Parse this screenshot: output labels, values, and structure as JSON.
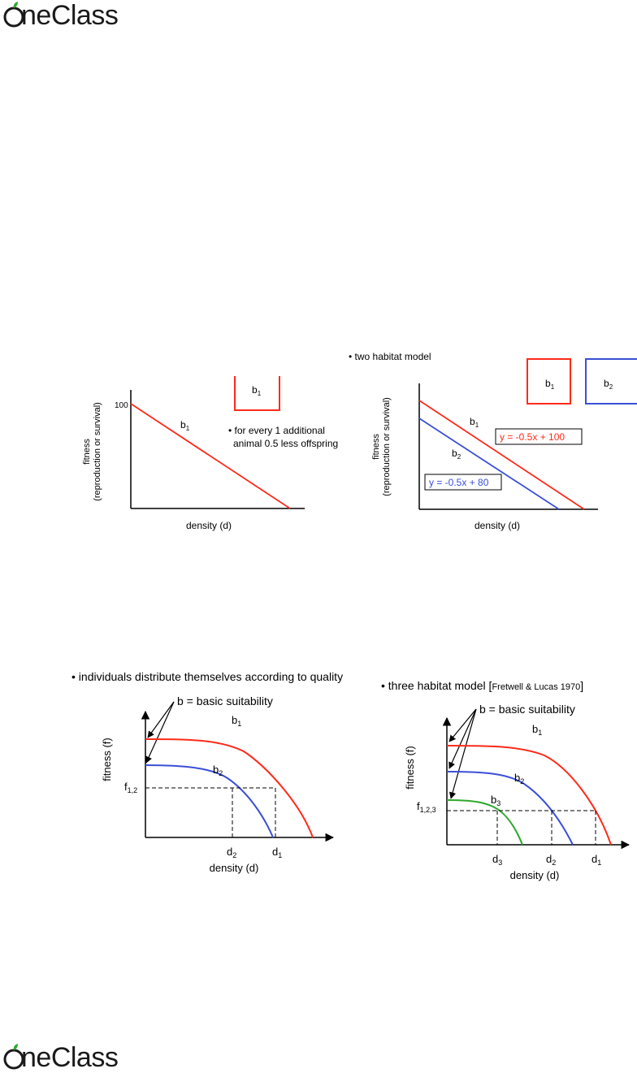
{
  "brand": {
    "name": "OneClass",
    "logo_text": "neClass"
  },
  "colors": {
    "red": "#ff2a1a",
    "blue": "#3a4fd6",
    "green": "#2ea82e",
    "axis": "#000000"
  },
  "fig1": {
    "ylabel_1": "fitness",
    "ylabel_2": "(reproduction or survival)",
    "xlabel": "density (d)",
    "y_tick": "100",
    "line_label": "b",
    "line_sub": "1",
    "box_label": "b",
    "box_sub": "1",
    "note_1": "• for every 1 additional",
    "note_2": "animal 0.5 less offspring"
  },
  "fig2": {
    "title": "• two habitat model",
    "ylabel_1": "fitness",
    "ylabel_2": "(reproduction or survival)",
    "xlabel": "density (d)",
    "b1": "b",
    "b1_sub": "1",
    "b2": "b",
    "b2_sub": "2",
    "box1": "b",
    "box1_sub": "1",
    "box2": "b",
    "box2_sub": "2",
    "eq1": "y = -0.5x + 100",
    "eq2": "y = -0.5x + 80"
  },
  "fig3": {
    "title": "• individuals distribute themselves according to quality",
    "annot": "b = basic suitability",
    "ylabel": "fitness (f)",
    "xlabel": "density (d)",
    "f": "f",
    "f_sub": "1,2",
    "b1": "b",
    "b1_sub": "1",
    "b2": "b",
    "b2_sub": "2",
    "d1": "d",
    "d1_sub": "1",
    "d2": "d",
    "d2_sub": "2"
  },
  "fig4": {
    "title": "• three habitat model [",
    "ref": "Fretwell & Lucas 1970",
    "ref_close": "]",
    "annot": "b = basic suitability",
    "ylabel": "fitness (f)",
    "xlabel": "density (d)",
    "f": "f",
    "f_sub": "1,2,3",
    "b1": "b",
    "b1_sub": "1",
    "b2": "b",
    "b2_sub": "2",
    "b3": "b",
    "b3_sub": "3",
    "d1": "d",
    "d1_sub": "1",
    "d2": "d",
    "d2_sub": "2",
    "d3": "d",
    "d3_sub": "3"
  }
}
